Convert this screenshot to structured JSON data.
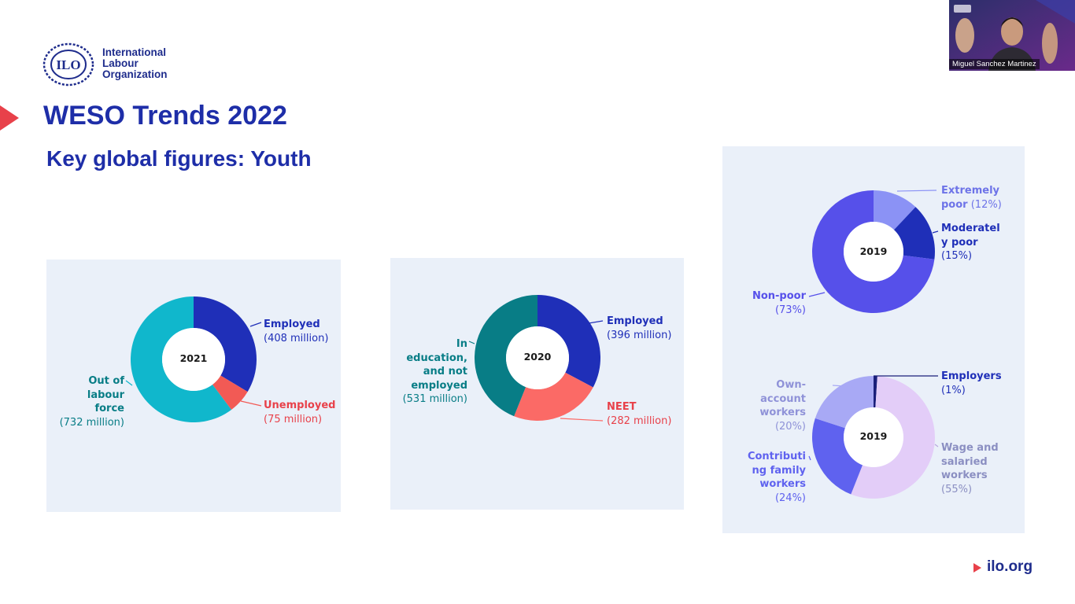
{
  "org": {
    "logo_initials": "ILO",
    "name_lines": [
      "International",
      "Labour",
      "Organization"
    ]
  },
  "slide": {
    "title": "WESO Trends 2022",
    "subtitle": "Key global figures: Youth",
    "footer_link": "ilo.org"
  },
  "video": {
    "participant_name": "Miguel Sanchez Martinez"
  },
  "colors": {
    "brand_blue": "#1e2ea8",
    "accent_red": "#e8414a",
    "panel_bg": "#eaf0f9"
  },
  "chart_data": [
    {
      "type": "pie",
      "center_label": "2021",
      "slices": [
        {
          "label_lines": [
            "Employed"
          ],
          "value_text": "(408 million)",
          "value": 408,
          "color": "#1f2fb8"
        },
        {
          "label_lines": [
            "Unemployed"
          ],
          "value_text": "(75 million)",
          "value": 75,
          "color": "#f25a55"
        },
        {
          "label_lines": [
            "Out of",
            "labour",
            "force"
          ],
          "value_text": "(732 million)",
          "value": 732,
          "color": "#10b7cc"
        }
      ]
    },
    {
      "type": "pie",
      "center_label": "2020",
      "slices": [
        {
          "label_lines": [
            "Employed"
          ],
          "value_text": "(396 million)",
          "value": 396,
          "color": "#1f2fb8"
        },
        {
          "label_lines": [
            "NEET"
          ],
          "value_text": "(282 million)",
          "value": 282,
          "color": "#fb6a66"
        },
        {
          "label_lines": [
            "In",
            "education,",
            "and not",
            "employed"
          ],
          "value_text": "(531 million)",
          "value": 531,
          "color": "#087d86"
        }
      ]
    },
    {
      "type": "pie",
      "center_label": "2019",
      "slices": [
        {
          "label_lines": [
            "Extremely",
            "poor"
          ],
          "value_text": "(12%)",
          "value": 12,
          "color": "#8b92f5"
        },
        {
          "label_lines": [
            "Moderatel",
            "y poor"
          ],
          "value_text": "(15%)",
          "value": 15,
          "color": "#1f2fb8"
        },
        {
          "label_lines": [
            "Non-poor"
          ],
          "value_text": "(73%)",
          "value": 73,
          "color": "#5650ea"
        }
      ]
    },
    {
      "type": "pie",
      "center_label": "2019",
      "slices": [
        {
          "label_lines": [
            "Employers"
          ],
          "value_text": "(1%)",
          "value": 1,
          "color": "#1a1f7a"
        },
        {
          "label_lines": [
            "Wage and",
            "salaried",
            "workers"
          ],
          "value_text": "(55%)",
          "value": 55,
          "color": "#e3cdf8"
        },
        {
          "label_lines": [
            "Contributi",
            "ng family",
            "workers"
          ],
          "value_text": "(24%)",
          "value": 24,
          "color": "#5f62ef"
        },
        {
          "label_lines": [
            "Own-",
            "account",
            "workers"
          ],
          "value_text": "(20%)",
          "value": 20,
          "color": "#a8a9f5"
        }
      ]
    }
  ]
}
